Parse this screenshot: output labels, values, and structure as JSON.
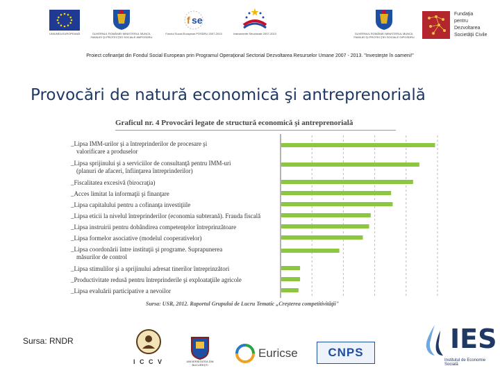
{
  "header": {
    "logos": [
      {
        "icon": "eu-flag-icon",
        "caption": "UNIUNEA EUROPEANĂ"
      },
      {
        "icon": "romania-coat-icon",
        "caption": "GUVERNUL ROMÂNIEI MINISTERUL MUNCII, FAMILIEI ŞI PROTECŢIEI SOCIALE AMPOSDRU"
      },
      {
        "icon": "fse-logo-icon",
        "caption": "Fondul Social European POSDRU 2007-2013"
      },
      {
        "icon": "structural-funds-icon",
        "caption": "Instrumente Structurale 2007-2013"
      },
      {
        "icon": "romania-coat-icon",
        "caption": "GUVERNUL ROMÂNIEI MINISTERUL MUNCII, FAMILIEI ŞI PROTECŢIEI SOCIALE OIPOSDRU"
      }
    ],
    "foundation_name": "Fundaţia pentru Dezvoltarea Societăţii Civile",
    "project_line": "Proiect cofinanţat din Fondul Social European prin Programul Operaţional Sectorial Dezvoltarea Resurselor Umane 2007 - 2013. \"Investeşte în oameni!\""
  },
  "slide": {
    "title": "Provocări de natură economică şi antreprenorială",
    "source_label": "Sursa: RNDR"
  },
  "chart_data": {
    "type": "bar",
    "orientation": "horizontal",
    "title": "Graficul nr. 4  Provocări legate de structură economică şi antreprenorială",
    "categories": [
      "Lipsa IMM-urilor şi a întreprinderilor de procesare şi valorificare a produselor",
      "Lipsa sprijinului şi a serviciilor de consultanţă pentru IMM-uri (planuri de afaceri, înfiinţarea întreprinderilor)",
      "Fiscalitatea excesivă (birocraţia)",
      "Acces limitat la informaţii şi finanţare",
      "Lipsa capitalului pentru a cofinanţa investiţiile",
      "Lipsa eticii la nivelul întreprinderilor (economia subterană). Frauda fiscală",
      "Lipsa instruirii pentru dobândirea competenţelor întreprinzătoare",
      "Lipsa formelor asociative (modelul cooperativelor)",
      "Lipsa coordonării între instituţii şi programe. Suprapunerea măsurilor de control",
      "Lipsa stimulilor şi a sprijinului adresat tinerilor întreprinzători",
      "Productivitate redusă pentru întreprinderile şi exploataţiile agricole",
      "Lipsa evaluării participative a nevoilor"
    ],
    "category_lines": [
      [
        "Lipsa IMM-urilor şi a întreprinderilor de procesare şi",
        "valorificare a produselor"
      ],
      [
        "Lipsa sprijinului şi a serviciilor de consultanţă pentru IMM-uri",
        "(planuri de afaceri, înfiinţarea întreprinderilor)"
      ],
      [
        "Fiscalitatea excesivă (birocraţia)"
      ],
      [
        "Acces limitat la informaţii şi finanţare"
      ],
      [
        "Lipsa capitalului pentru a cofinanţa investiţiile"
      ],
      [
        "Lipsa eticii la nivelul întreprinderilor (economia subterană). Frauda fiscală"
      ],
      [
        "Lipsa instruirii pentru dobândirea competenţelor întreprinzătoare"
      ],
      [
        "Lipsa formelor asociative (modelul cooperativelor)"
      ],
      [
        "Lipsa coordonării între instituţii şi programe. Suprapunerea",
        "măsurilor de control"
      ],
      [
        "Lipsa stimulilor şi a sprijinului adresat tinerilor întreprinzători"
      ],
      [
        "Productivitate redusă pentru întreprinderile şi exploataţiile agricole"
      ],
      [
        "Lipsa evaluării participative a nevoilor"
      ]
    ],
    "values": [
      0.98,
      0.88,
      0.84,
      0.7,
      0.71,
      0.57,
      0.56,
      0.52,
      0.37,
      0.12,
      0.12,
      0.11
    ],
    "xlim": [
      0,
      1
    ],
    "bar_color": "#8dc63f",
    "grid": true,
    "source": "Sursa: USR, 2012. Raportul Grupului de Lucru Tematic „Creşterea competitivităţii\""
  },
  "footer": {
    "partner_logos": [
      {
        "icon": "iccv-logo-icon",
        "caption": "I C C V"
      },
      {
        "icon": "university-bucharest-icon",
        "caption": "UNIVERSITATEA DIN BUCUREŞTI"
      },
      {
        "icon": "euricse-logo-icon",
        "caption": "Euricse"
      },
      {
        "icon": "cnps-logo-icon",
        "caption": "CNPS"
      }
    ],
    "ies_name": "IES",
    "ies_subtitle": "Institutul de Economie Socială"
  }
}
